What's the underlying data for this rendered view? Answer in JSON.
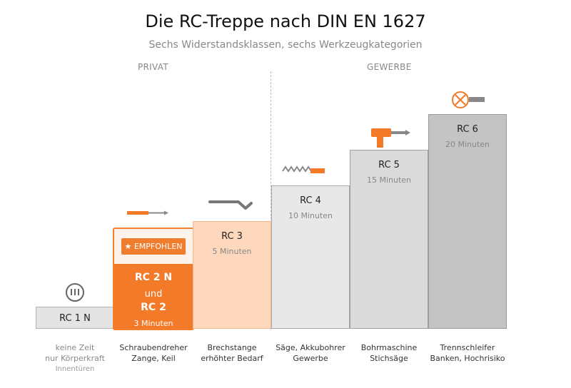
{
  "title": "Die RC-Treppe nach DIN EN 1627",
  "subtitle": "Sechs Widerstandsklassen, sechs Werkzeugkategorien",
  "sections": {
    "private": "PRIVAT",
    "commercial": "GEWERBE"
  },
  "colors": {
    "accent": "#f27a28",
    "accent_light": "#fde3cf",
    "grey_dark": "#c4c4c4"
  },
  "steps": [
    {
      "name": "RC 1 N",
      "time": "",
      "icon": "no-tool-icon",
      "tools": [
        "keine Zeit",
        "nur Körperkraft"
      ],
      "note": "Innentüren"
    },
    {
      "name_line1": "RC 2 N",
      "name_and": "und",
      "name_line2": "RC 2",
      "time": "3 Minuten",
      "badge": "★ EMPFOHLEN",
      "icon": "screwdriver-icon",
      "tools": [
        "Schraubendreher",
        "Zange, Keil"
      ]
    },
    {
      "name": "RC 3",
      "time": "5 Minuten",
      "icon": "crowbar-icon",
      "tools": [
        "Brechstange",
        "erhöhter Bedarf"
      ]
    },
    {
      "name": "RC 4",
      "time": "10 Minuten",
      "icon": "saw-icon",
      "tools": [
        "Säge, Akkubohrer",
        "Gewerbe"
      ]
    },
    {
      "name": "RC 5",
      "time": "15 Minuten",
      "icon": "drill-icon",
      "tools": [
        "Bohrmaschine",
        "Stichsäge"
      ]
    },
    {
      "name": "RC 6",
      "time": "20 Minuten",
      "icon": "angle-grinder-icon",
      "tools": [
        "Trennschleifer",
        "Banken, Hochrisiko"
      ]
    }
  ]
}
